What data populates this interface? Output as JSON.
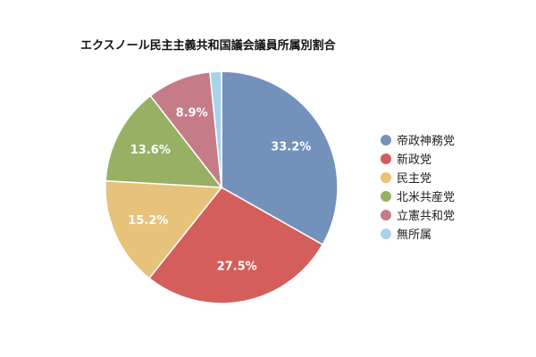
{
  "chart_data": {
    "type": "pie",
    "title": "エクスノール民主主義共和国議会議員所属別割合",
    "slices": [
      {
        "label": "帝政神務党",
        "value": 33.2,
        "display": "33.2%",
        "color": "#7292bb"
      },
      {
        "label": "新政党",
        "value": 27.5,
        "display": "27.5%",
        "color": "#d45e5c"
      },
      {
        "label": "民主党",
        "value": 15.2,
        "display": "15.2%",
        "color": "#e6c27a"
      },
      {
        "label": "北米共産党",
        "value": 13.6,
        "display": "13.6%",
        "color": "#97b064"
      },
      {
        "label": "立憲共和党",
        "value": 8.9,
        "display": "8.9%",
        "color": "#c57c86"
      },
      {
        "label": "無所属",
        "value": 1.6,
        "display": "",
        "color": "#a9d3e9"
      }
    ],
    "start_angle_deg": 0,
    "direction": "clockwise",
    "legend_position": "right"
  }
}
